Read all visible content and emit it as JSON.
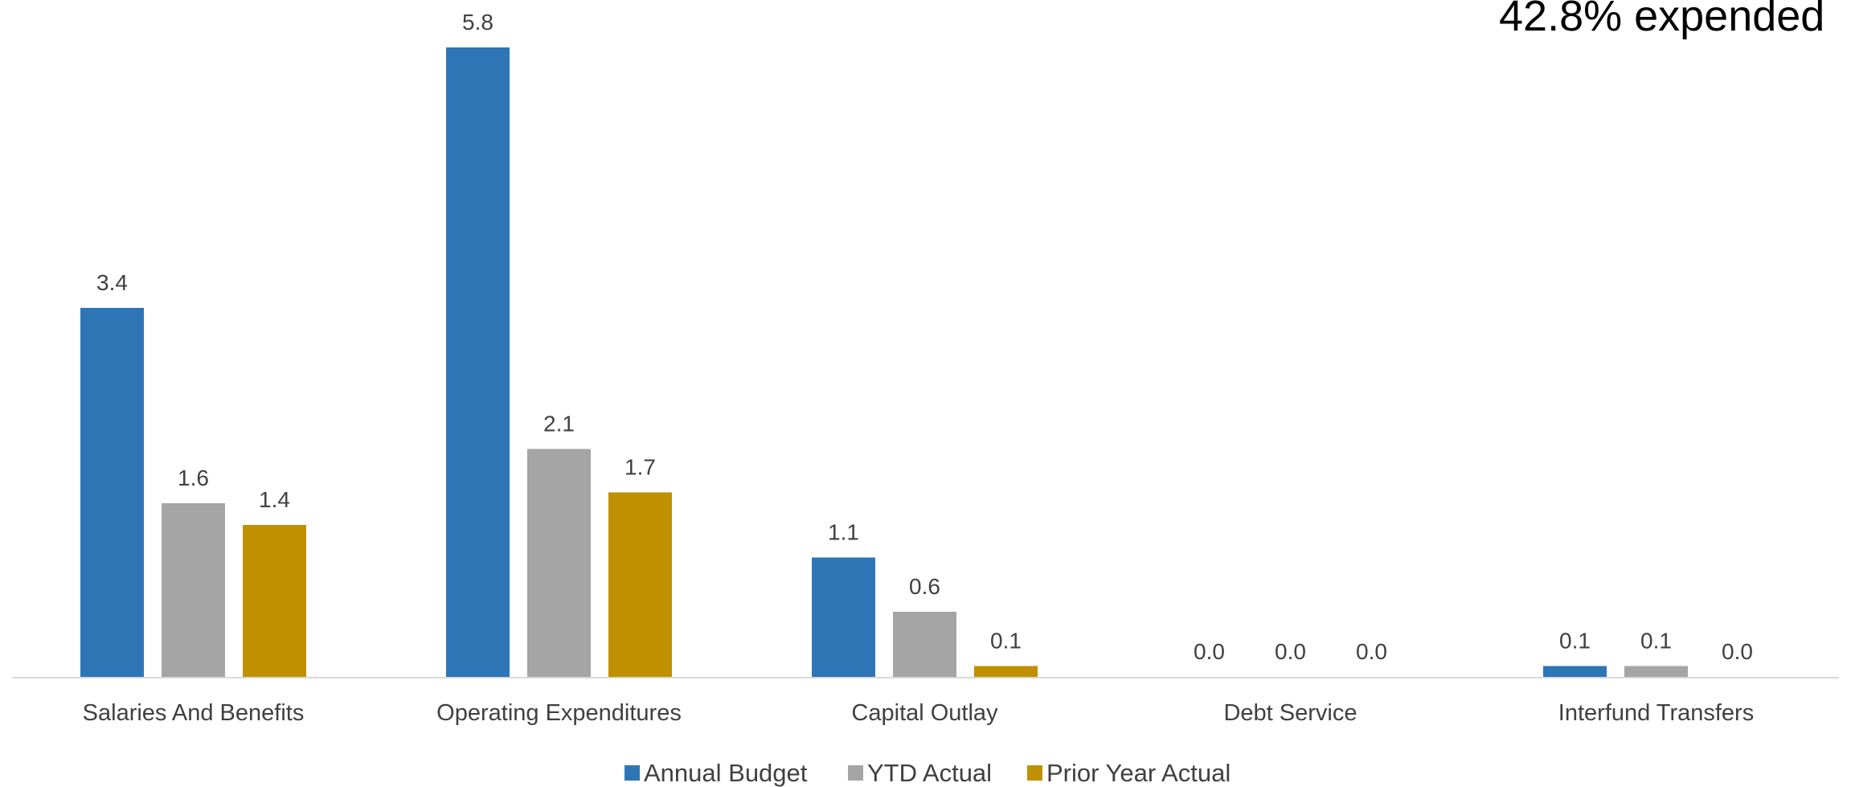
{
  "chart_data": {
    "type": "bar",
    "categories": [
      "Salaries And Benefits",
      "Operating Expenditures",
      "Capital Outlay",
      "Debt Service",
      "Interfund Transfers"
    ],
    "series": [
      {
        "name": "Annual Budget",
        "color": "#2E75B6",
        "values": [
          3.4,
          5.8,
          1.1,
          0.0,
          0.1
        ]
      },
      {
        "name": "YTD Actual",
        "color": "#A5A5A5",
        "values": [
          1.6,
          2.1,
          0.6,
          0.0,
          0.1
        ]
      },
      {
        "name": "Prior Year Actual",
        "color": "#BF9000",
        "values": [
          1.4,
          1.7,
          0.1,
          0.0,
          0.0
        ]
      }
    ],
    "data_labels": [
      [
        "3.4",
        "5.8",
        "1.1",
        "0.0",
        "0.1"
      ],
      [
        "1.6",
        "2.1",
        "0.6",
        "0.0",
        "0.1"
      ],
      [
        "1.4",
        "1.7",
        "0.1",
        "0.0",
        "0.0"
      ]
    ],
    "annotation": "42.8% expended",
    "legend_position": "bottom",
    "grid": false
  }
}
